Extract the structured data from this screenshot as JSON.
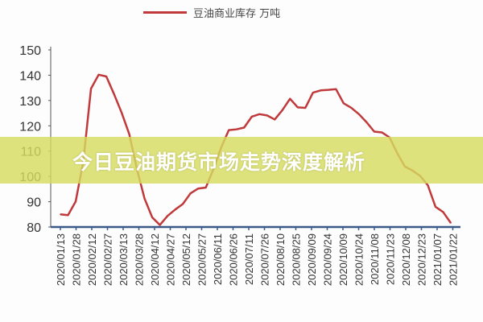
{
  "chart_data": {
    "type": "line",
    "title": "",
    "xlabel": "",
    "ylabel": "",
    "legend": {
      "label": "豆油商业库存 万吨",
      "placement": "top-center"
    },
    "ylim": [
      80,
      150
    ],
    "yticks": [
      80,
      90,
      100,
      110,
      120,
      130,
      140,
      150
    ],
    "grid": false,
    "x_tick_labels": [
      "2020/01/13",
      "2020/01/28",
      "2020/02/12",
      "2020/02/27",
      "2020/03/13",
      "2020/03/28",
      "2020/04/12",
      "2020/04/27",
      "2020/05/12",
      "2020/05/27",
      "2020/06/11",
      "2020/06/26",
      "2020/07/11",
      "2020/07/26",
      "2020/08/10",
      "2020/08/25",
      "2020/09/09",
      "2020/09/24",
      "2020/10/09",
      "2020/10/24",
      "2020/11/08",
      "2020/11/23",
      "2020/12/08",
      "2020/12/23",
      "2021/01/07",
      "2021/01/22"
    ],
    "series": [
      {
        "name": "豆油商业库存 万吨",
        "color": "#c0393b",
        "values": [
          85.0,
          84.7,
          90.1,
          106,
          134.7,
          140.2,
          139.5,
          132.6,
          125.2,
          116.7,
          102.9,
          91.2,
          83.8,
          80.8,
          84.4,
          86.9,
          89.1,
          93.3,
          95.2,
          95.6,
          102.9,
          111.4,
          118.3,
          118.6,
          119.3,
          123.6,
          124.6,
          124.1,
          122.5,
          126.2,
          130.7,
          127.3,
          127.1,
          133.1,
          134.0,
          134.2,
          134.5,
          128.9,
          127.1,
          124.6,
          121.4,
          117.7,
          117.4,
          115.4,
          109.2,
          103.9,
          102.3,
          100.2,
          96.5,
          88.0,
          85.9,
          81.6
        ]
      }
    ]
  },
  "banner": {
    "title": "今日豆油期货市场走势深度解析"
  },
  "colors": {
    "line": "#c0393b",
    "axis": "#3b5a8a",
    "banner": "#d6dc60"
  }
}
